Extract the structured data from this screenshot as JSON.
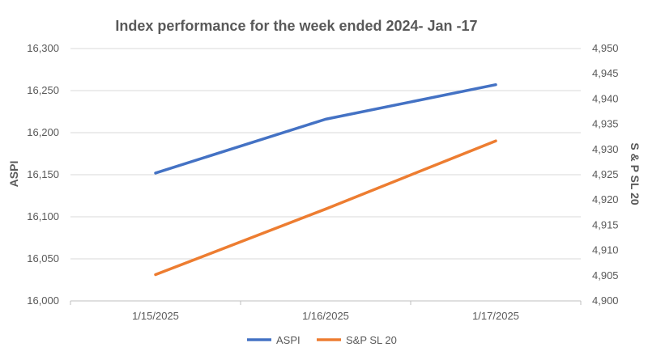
{
  "chart_data": {
    "type": "line",
    "title": "Index performance for the week ended 2024- Jan -17",
    "categories": [
      "1/15/2025",
      "1/16/2025",
      "1/17/2025"
    ],
    "y_left": {
      "label": "ASPI",
      "range": [
        16000,
        16300
      ],
      "ticks": [
        "16,000",
        "16,050",
        "16,100",
        "16,150",
        "16,200",
        "16,250",
        "16,300"
      ]
    },
    "y_right": {
      "label": "S & P SL 20",
      "range": [
        4900,
        4950
      ],
      "ticks": [
        "4,900",
        "4,905",
        "4,910",
        "4,915",
        "4,920",
        "4,925",
        "4,930",
        "4,935",
        "4,940",
        "4,945",
        "4,950"
      ]
    },
    "series": [
      {
        "name": "ASPI",
        "axis": "left",
        "color": "#4472c4",
        "values": [
          16152,
          16216,
          16257
        ]
      },
      {
        "name": "S&P SL 20",
        "axis": "right",
        "color": "#ed7d31",
        "values": [
          4905.2,
          4918.2,
          4931.7
        ]
      }
    ],
    "grid": true,
    "legend_position": "bottom"
  }
}
